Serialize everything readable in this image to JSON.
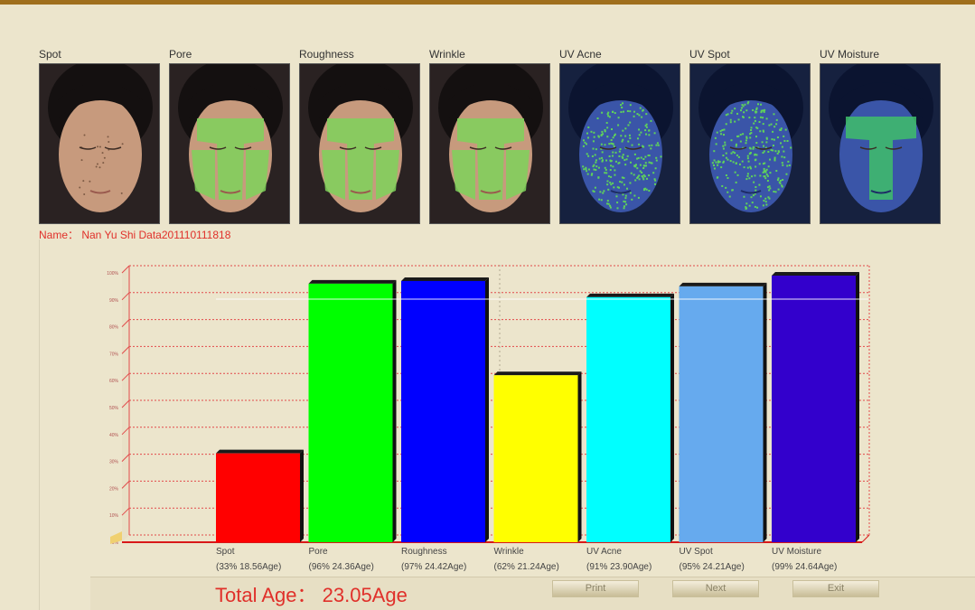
{
  "thumbnails": [
    {
      "label": "Spot",
      "style": "normal"
    },
    {
      "label": "Pore",
      "style": "green-mask"
    },
    {
      "label": "Roughness",
      "style": "green-mask"
    },
    {
      "label": "Wrinkle",
      "style": "green-mask"
    },
    {
      "label": "UV Acne",
      "style": "uv-speckle"
    },
    {
      "label": "UV Spot",
      "style": "uv-speckle"
    },
    {
      "label": "UV Moisture",
      "style": "uv-tzone"
    }
  ],
  "name_line": "Name： Nan Yu Shi Data201110111818",
  "chart_data": {
    "type": "bar",
    "categories": [
      "Spot",
      "Pore",
      "Roughness",
      "Wrinkle",
      "UV Acne",
      "UV Spot",
      "UV Moisture"
    ],
    "category_sublabels": [
      "(33% 18.56Age)",
      "(96% 24.36Age)",
      "(97% 24.42Age)",
      "(62% 21.24Age)",
      "(91% 23.90Age)",
      "(95% 24.21Age)",
      "(99% 24.64Age)"
    ],
    "values": [
      33,
      96,
      97,
      62,
      91,
      95,
      99
    ],
    "colors": [
      "#ff0000",
      "#00ff00",
      "#0000ff",
      "#ffff00",
      "#00ffff",
      "#66aaee",
      "#3300cc"
    ],
    "ylim": [
      0,
      100
    ],
    "ytick_labels": [
      "0%",
      "10%",
      "20%",
      "30%",
      "40%",
      "50%",
      "60%",
      "70%",
      "80%",
      "90%",
      "100%"
    ],
    "grid": true,
    "3d": true
  },
  "total_age": "Total Age： 23.05Age",
  "buttons": {
    "print": "Print",
    "next": "Next",
    "exit": "Exit"
  }
}
